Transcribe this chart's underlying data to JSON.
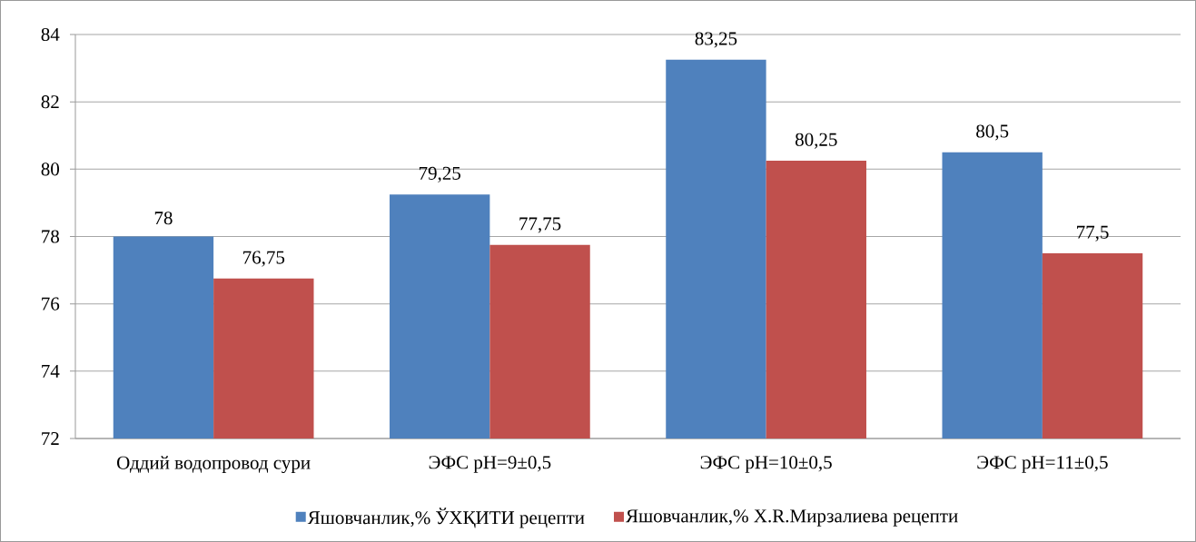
{
  "chart_data": {
    "type": "bar",
    "categories": [
      "Оддий водопровод сури",
      "ЭФС pH=9±0,5",
      "ЭФС pH=10±0,5",
      "ЭФС pH=11±0,5"
    ],
    "series": [
      {
        "name": "Яшовчанлик,% ЎХҚИТИ рецепти",
        "color": "#4f81bd",
        "values": [
          78,
          79.25,
          83.25,
          80.5
        ],
        "value_labels": [
          "78",
          "79,25",
          "83,25",
          "80,5"
        ]
      },
      {
        "name": "Яшовчанлик,% X.R.Мирзалиева рецепти",
        "color": "#c0504d",
        "values": [
          76.75,
          77.75,
          80.25,
          77.5
        ],
        "value_labels": [
          "76,75",
          "77,75",
          "80,25",
          "77,5"
        ]
      }
    ],
    "ylim": [
      72,
      84
    ],
    "yticks": [
      72,
      74,
      76,
      78,
      80,
      82,
      84
    ],
    "grid": "y",
    "legend": "bottom"
  }
}
